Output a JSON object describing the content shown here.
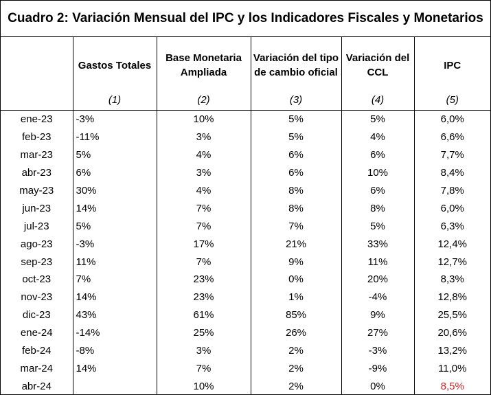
{
  "title": "Cuadro 2: Variación Mensual del IPC y los Indicadores Fiscales y Monetarios",
  "headers": [
    {
      "label": "",
      "sub": ""
    },
    {
      "label": "Gastos Totales",
      "sub": "(1)"
    },
    {
      "label": "Base Monetaria Ampliada",
      "sub": "(2)"
    },
    {
      "label": "Variación del tipo de cambio oficial",
      "sub": "(3)"
    },
    {
      "label": "Variación del CCL",
      "sub": "(4)"
    },
    {
      "label": "IPC",
      "sub": "(5)"
    }
  ],
  "rows": [
    [
      "ene-23",
      "-3%",
      "10%",
      "5%",
      "5%",
      "6,0%"
    ],
    [
      "feb-23",
      "-11%",
      "3%",
      "5%",
      "4%",
      "6,6%"
    ],
    [
      "mar-23",
      "5%",
      "4%",
      "6%",
      "6%",
      "7,7%"
    ],
    [
      "abr-23",
      "6%",
      "3%",
      "6%",
      "10%",
      "8,4%"
    ],
    [
      "may-23",
      "30%",
      "4%",
      "8%",
      "6%",
      "7,8%"
    ],
    [
      "jun-23",
      "14%",
      "7%",
      "8%",
      "8%",
      "6,0%"
    ],
    [
      "jul-23",
      "5%",
      "7%",
      "7%",
      "5%",
      "6,3%"
    ],
    [
      "ago-23",
      "-3%",
      "17%",
      "21%",
      "33%",
      "12,4%"
    ],
    [
      "sep-23",
      "11%",
      "7%",
      "9%",
      "11%",
      "12,7%"
    ],
    [
      "oct-23",
      "7%",
      "23%",
      "0%",
      "20%",
      "8,3%"
    ],
    [
      "nov-23",
      "14%",
      "23%",
      "1%",
      "-4%",
      "12,8%"
    ],
    [
      "dic-23",
      "43%",
      "61%",
      "85%",
      "9%",
      "25,5%"
    ],
    [
      "ene-24",
      "-14%",
      "25%",
      "26%",
      "27%",
      "20,6%"
    ],
    [
      "feb-24",
      "-8%",
      "3%",
      "2%",
      "-3%",
      "13,2%"
    ],
    [
      "mar-24",
      "14%",
      "7%",
      "2%",
      "-9%",
      "11,0%"
    ],
    [
      "abr-24",
      "",
      "10%",
      "2%",
      "0%",
      "8,5%"
    ]
  ],
  "highlight_color": "#e02020",
  "highlight_cell": {
    "row": 15,
    "col": 5
  }
}
